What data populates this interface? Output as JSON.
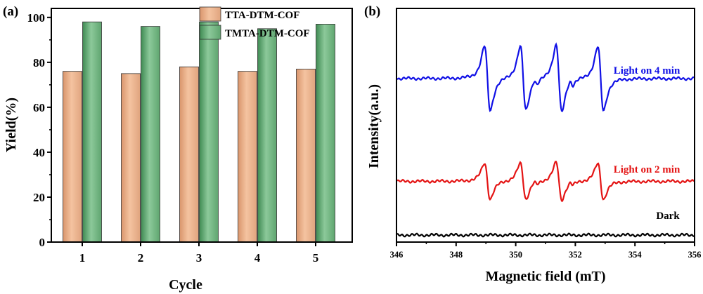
{
  "chart_data": [
    {
      "type": "bar",
      "panel_label": "(a)",
      "xlabel": "Cycle",
      "ylabel": "Yield(%)",
      "categories": [
        "1",
        "2",
        "3",
        "4",
        "5"
      ],
      "yticks": [
        "0",
        "20",
        "40",
        "60",
        "80",
        "100"
      ],
      "ylim": [
        0,
        100
      ],
      "legend_placement": "top-right",
      "series": [
        {
          "name": "TTA-DTM-COF",
          "values": [
            76,
            75,
            78,
            76,
            77
          ],
          "color": "#f4c3a0"
        },
        {
          "name": "TMTA-DTM-COF",
          "values": [
            98,
            96,
            98,
            95,
            97
          ],
          "color": "#5fa56f"
        }
      ]
    },
    {
      "type": "line",
      "panel_label": "(b)",
      "xlabel": "Magnetic field (mT)",
      "ylabel": "Intensity(a.u.)",
      "xlim": [
        346,
        356
      ],
      "xticks": [
        "346",
        "348",
        "350",
        "352",
        "354",
        "356"
      ],
      "peak_centers_mT": [
        349.05,
        350.25,
        351.45,
        352.85
      ],
      "series": [
        {
          "name": "Light on 4 min",
          "color": "#1010e6",
          "baseline": 0.7,
          "amplitude": 0.25
        },
        {
          "name": "Light on 2 min",
          "color": "#e41414",
          "baseline": 0.26,
          "amplitude": 0.14
        },
        {
          "name": "Dark",
          "color": "#000000",
          "baseline": 0.03,
          "amplitude": 0
        }
      ]
    }
  ]
}
